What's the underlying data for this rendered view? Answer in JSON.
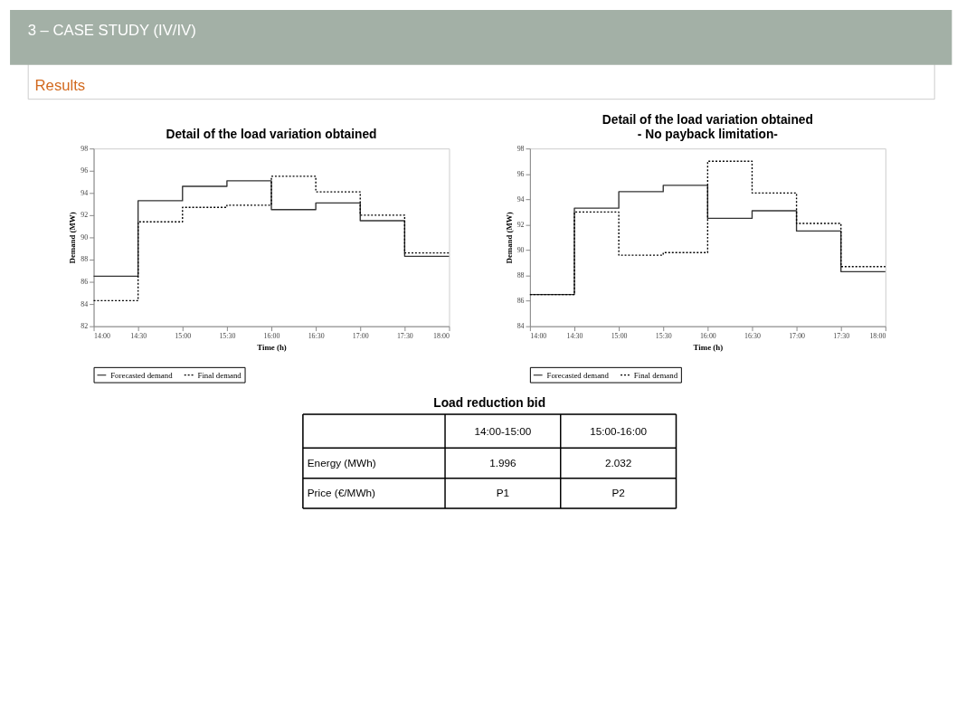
{
  "chart_data": [
    {
      "type": "step",
      "title": "Detail of the load variation obtained",
      "annotations": [
        "3 – CASE STUDY (IV/IV)",
        "Results"
      ],
      "xlabel": "Time (h)",
      "ylabel": "Demand (MW)",
      "x": [
        14,
        14.5,
        15,
        15.5,
        16,
        16.5,
        17,
        17.5,
        18
      ],
      "series": [
        {
          "name": "Forecasted demand",
          "color": "#333333",
          "line_style": "solid",
          "values": [
            86.5,
            93.3,
            94.6,
            95.1,
            92.5,
            93.1,
            91.5,
            88.3,
            88.3
          ]
        },
        {
          "name": "Final demand",
          "color": "#000000",
          "line_style": "dotted",
          "values": [
            84.3,
            91.4,
            92.7,
            92.9,
            95.5,
            94.1,
            92.0,
            88.6,
            88.6
          ]
        }
      ],
      "xlim": [
        14,
        18
      ],
      "xticks": [
        {
          "value": 14,
          "label": "14:00"
        },
        {
          "value": 14.5,
          "label": "14:30"
        },
        {
          "value": 15,
          "label": "15:00"
        },
        {
          "value": 15.5,
          "label": "15:30"
        },
        {
          "value": 16,
          "label": "16:00"
        },
        {
          "value": 16.5,
          "label": "16:30"
        },
        {
          "value": 17,
          "label": "17:00"
        },
        {
          "value": 17.5,
          "label": "17:30"
        },
        {
          "value": 18,
          "label": "18:00"
        }
      ],
      "ylim": [
        82,
        98
      ],
      "yticks": [
        82,
        84,
        86,
        88,
        90,
        92,
        94,
        96,
        98
      ],
      "grid": false,
      "legend": "bottom"
    },
    {
      "type": "step",
      "title": "Detail of the load variation obtained",
      "subtitle": "- No payback limitation-",
      "xlabel": "Time (h)",
      "ylabel": "Demand (MW)",
      "x": [
        14,
        14.5,
        15,
        15.5,
        16,
        16.5,
        17,
        17.5,
        18
      ],
      "series": [
        {
          "name": "Forecasted demand",
          "color": "#333333",
          "line_style": "solid",
          "values": [
            86.5,
            93.3,
            94.6,
            95.1,
            92.5,
            93.1,
            91.5,
            88.3,
            88.3
          ]
        },
        {
          "name": "Final demand",
          "color": "#000000",
          "line_style": "dotted",
          "values": [
            86.5,
            93.0,
            89.6,
            89.8,
            97.0,
            94.5,
            92.1,
            88.7,
            88.7
          ]
        }
      ],
      "xlim": [
        14,
        18
      ],
      "xticks": [
        {
          "value": 14,
          "label": "14:00"
        },
        {
          "value": 14.5,
          "label": "14:30"
        },
        {
          "value": 15,
          "label": "15:00"
        },
        {
          "value": 15.5,
          "label": "15:30"
        },
        {
          "value": 16,
          "label": "16:00"
        },
        {
          "value": 16.5,
          "label": "16:30"
        },
        {
          "value": 17,
          "label": "17:00"
        },
        {
          "value": 17.5,
          "label": "17:30"
        },
        {
          "value": 18,
          "label": "18:00"
        }
      ],
      "ylim": [
        84,
        98
      ],
      "yticks": [
        84,
        86,
        88,
        90,
        92,
        94,
        96,
        98
      ],
      "grid": false,
      "legend": "bottom"
    },
    {
      "type": "other",
      "title": "Load reduction bid",
      "annotations": [
        "14:00-15:00",
        "15:00-16:00",
        "Energy (MWh)",
        "1.996",
        "2.032",
        "Price (€/MWh)",
        "P1",
        "P2"
      ]
    }
  ]
}
